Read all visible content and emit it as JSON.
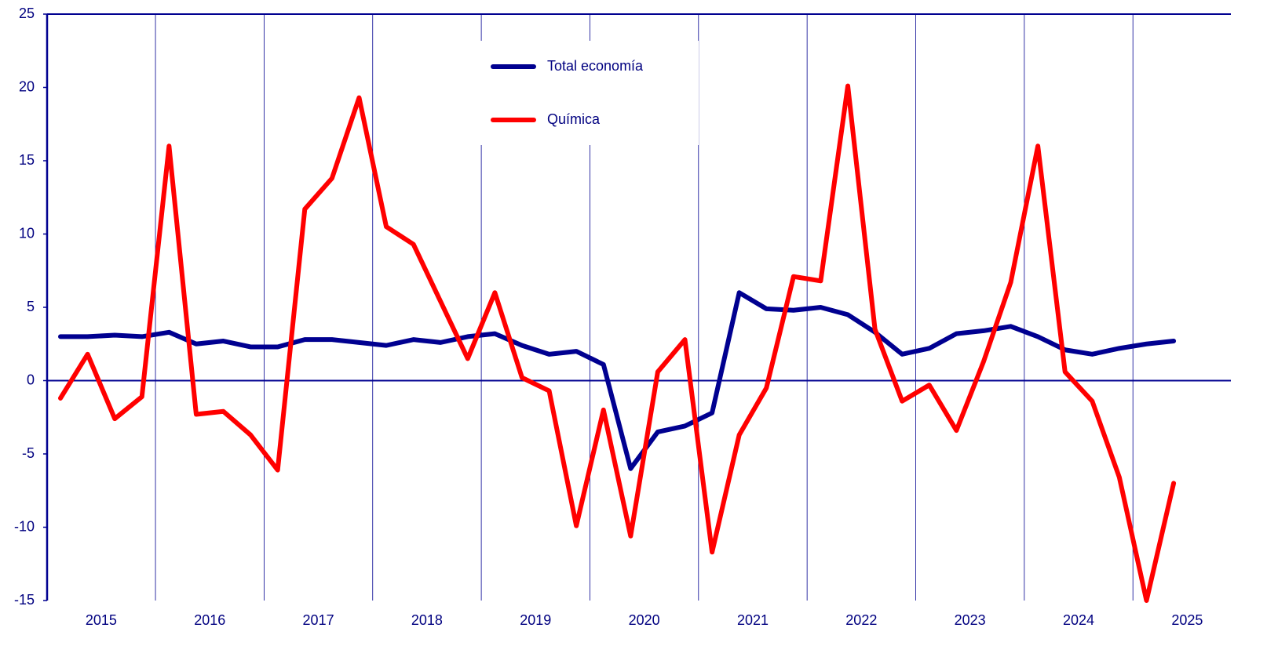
{
  "chart_data": {
    "type": "line",
    "categories": [
      null,
      "2015",
      null,
      null,
      null,
      "2016",
      null,
      null,
      null,
      "2017",
      null,
      null,
      null,
      "2018",
      null,
      null,
      null,
      "2019",
      null,
      null,
      null,
      "2020",
      null,
      null,
      null,
      "2021",
      null,
      null,
      null,
      "2022",
      null,
      null,
      null,
      "2023",
      null,
      null,
      null,
      "2024",
      null,
      null,
      null,
      "2025"
    ],
    "series": [
      {
        "name": "Total economía",
        "color": "#000090",
        "values": [
          3.0,
          3.0,
          3.1,
          3.0,
          3.3,
          2.5,
          2.7,
          2.3,
          2.3,
          2.8,
          2.8,
          2.6,
          2.4,
          2.8,
          2.6,
          3.0,
          3.2,
          2.4,
          1.8,
          2.0,
          1.1,
          -6.0,
          -3.5,
          -3.1,
          -2.2,
          6.0,
          4.9,
          4.8,
          5.0,
          4.5,
          3.3,
          1.8,
          2.2,
          3.2,
          3.4,
          3.7,
          3.0,
          2.1,
          1.8,
          2.2,
          2.5,
          2.7
        ]
      },
      {
        "name": "Química",
        "color": "#ff0000",
        "values": [
          -1.2,
          1.8,
          -2.6,
          -1.1,
          16.0,
          -2.3,
          -2.1,
          -3.7,
          -6.1,
          11.7,
          13.8,
          19.3,
          10.5,
          9.3,
          5.4,
          1.5,
          6.0,
          0.2,
          -0.7,
          -9.9,
          -2.0,
          -10.6,
          0.6,
          2.8,
          -11.7,
          -3.7,
          -0.5,
          7.1,
          6.8,
          20.1,
          3.5,
          -1.4,
          -0.3,
          -3.4,
          1.3,
          6.7,
          16.0,
          0.6,
          -1.4,
          -6.6,
          -15.0,
          -7.0
        ]
      }
    ],
    "ylim": [
      -15,
      25
    ],
    "yticks": [
      -15,
      -10,
      -5,
      0,
      5,
      10,
      15,
      20,
      25
    ]
  }
}
